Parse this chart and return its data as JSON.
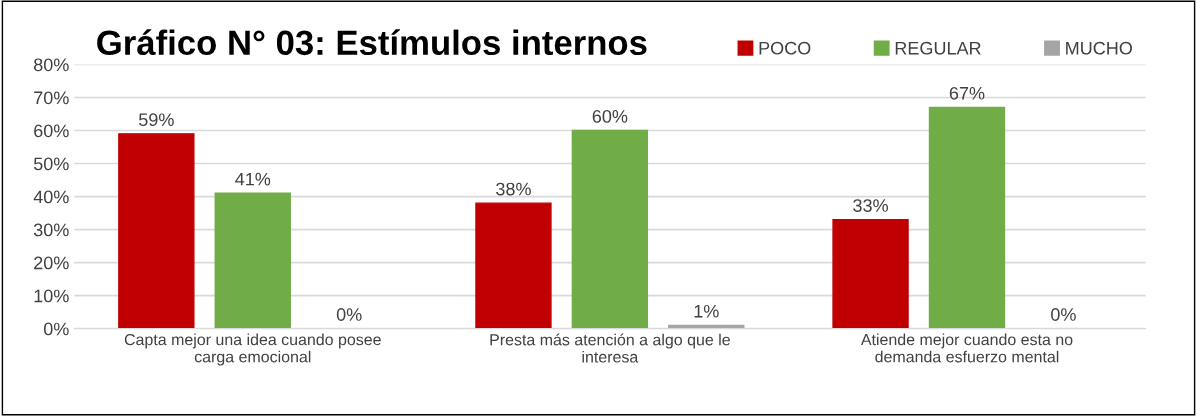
{
  "chart_data": {
    "type": "bar",
    "title": "Gráfico N° 03: Estímulos internos",
    "categories": [
      "Capta mejor una idea cuando posee carga emocional",
      "Presta más atención a algo que le interesa",
      "Atiende mejor cuando esta no demanda esfuerzo mental"
    ],
    "series": [
      {
        "name": "POCO",
        "color": "#c00000",
        "values": [
          59,
          38,
          33
        ],
        "value_labels": [
          "59%",
          "38%",
          "33%"
        ]
      },
      {
        "name": "REGULAR",
        "color": "#70ad47",
        "values": [
          41,
          60,
          67
        ],
        "value_labels": [
          "41%",
          "60%",
          "67%"
        ]
      },
      {
        "name": "MUCHO",
        "color": "#a5a5a5",
        "values": [
          0,
          1,
          0
        ],
        "value_labels": [
          "0%",
          "1%",
          "0%"
        ]
      }
    ],
    "ylim": [
      0,
      80
    ],
    "yticks": [
      {
        "value": 0,
        "label": "0%"
      },
      {
        "value": 10,
        "label": "10%"
      },
      {
        "value": 20,
        "label": "20%"
      },
      {
        "value": 30,
        "label": "30%"
      },
      {
        "value": 40,
        "label": "40%"
      },
      {
        "value": 50,
        "label": "50%"
      },
      {
        "value": 60,
        "label": "60%"
      },
      {
        "value": 70,
        "label": "70%"
      },
      {
        "value": 80,
        "label": "80%"
      }
    ],
    "grid": "y",
    "legend": "top right"
  }
}
